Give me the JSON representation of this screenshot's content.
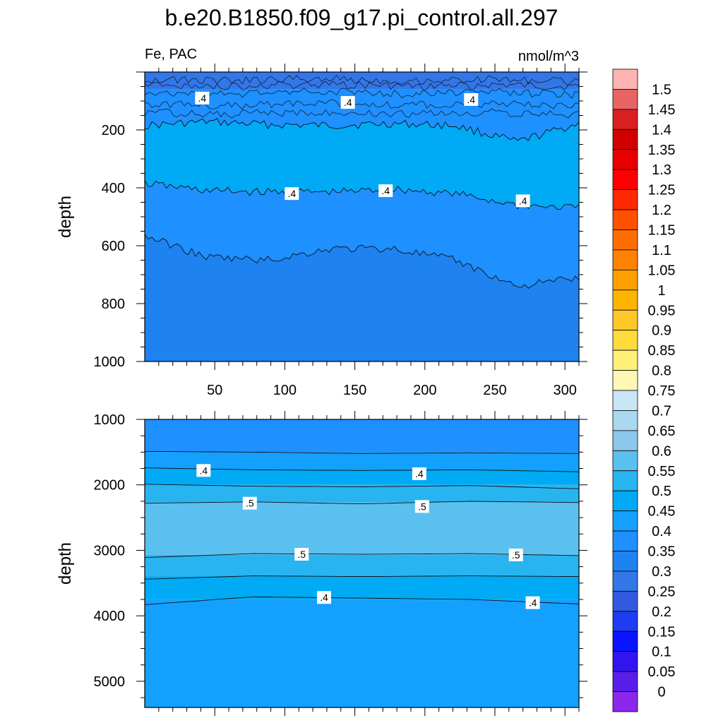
{
  "title": "b.e20.B1850.f09_g17.pi_control.all.297",
  "left_string": "Fe, PAC",
  "right_string": "nmol/m^3",
  "chart_data": [
    {
      "type": "heatmap",
      "panel": "upper",
      "ylabel": "depth",
      "xlim": [
        0,
        310
      ],
      "ylim": [
        1000,
        0
      ],
      "x_ticks": [
        50,
        100,
        150,
        200,
        250,
        300
      ],
      "y_ticks": [
        200,
        400,
        600,
        800,
        1000
      ],
      "contour_lines": [
        {
          "label": ".4",
          "depth": [
            185,
            172,
            182,
            185,
            178,
            185,
            242,
            178
          ]
        },
        {
          "label": ".4",
          "depth": [
            385,
            410,
            415,
            415,
            405,
            420,
            460,
            470
          ]
        },
        {
          "label": ".4",
          "depth": [
            565,
            640,
            650,
            610,
            610,
            650,
            740,
            710
          ]
        }
      ],
      "contour_labels": [
        {
          "text": ".4",
          "x": 41,
          "y": 90
        },
        {
          "text": ".4",
          "x": 145,
          "y": 105
        },
        {
          "text": ".4",
          "x": 233,
          "y": 95
        },
        {
          "text": ".4",
          "x": 105,
          "y": 420
        },
        {
          "text": ".4",
          "x": 172,
          "y": 410
        },
        {
          "text": ".4",
          "x": 270,
          "y": 445
        }
      ],
      "bands": [
        {
          "from": 0,
          "to": 60,
          "value": 0.25
        },
        {
          "from": 60,
          "to": "line1",
          "value": 0.35
        },
        {
          "from": "line1",
          "to": "line2",
          "value": 0.45
        },
        {
          "from": "line2",
          "to": "line3",
          "value": 0.35
        },
        {
          "from": "line3",
          "to": 1000,
          "value": 0.3
        }
      ]
    },
    {
      "type": "heatmap",
      "panel": "lower",
      "ylabel": "depth",
      "xlim": [
        0,
        310
      ],
      "ylim": [
        5400,
        1000
      ],
      "x_ticks": [
        50,
        100,
        150,
        200,
        250,
        300
      ],
      "y_ticks": [
        1000,
        2000,
        3000,
        4000,
        5000
      ],
      "contour_lines": [
        {
          "label": ".4",
          "depth": [
            1490,
            1500,
            1520,
            1510,
            1520
          ]
        },
        {
          "label": ".4",
          "depth": [
            1740,
            1770,
            1780,
            1770,
            1800
          ]
        },
        {
          "label": ".5",
          "depth": [
            1990,
            2020,
            2030,
            2010,
            2060
          ]
        },
        {
          "label": ".5",
          "depth": [
            2280,
            2260,
            2290,
            2250,
            2270
          ]
        },
        {
          "label": ".5",
          "depth": [
            3110,
            3050,
            3060,
            3050,
            3080
          ]
        },
        {
          "label": ".5",
          "depth": [
            3440,
            3390,
            3400,
            3390,
            3400
          ]
        },
        {
          "label": ".4",
          "depth": [
            3830,
            3710,
            3730,
            3750,
            3820
          ]
        }
      ],
      "contour_labels": [
        {
          "text": ".4",
          "x": 42,
          "y": 1780
        },
        {
          "text": ".4",
          "x": 196,
          "y": 1830
        },
        {
          "text": ".5",
          "x": 75,
          "y": 2280
        },
        {
          "text": ".5",
          "x": 198,
          "y": 2330
        },
        {
          "text": ".5",
          "x": 112,
          "y": 3060
        },
        {
          "text": ".5",
          "x": 265,
          "y": 3070
        },
        {
          "text": ".4",
          "x": 128,
          "y": 3720
        },
        {
          "text": ".4",
          "x": 277,
          "y": 3800
        }
      ],
      "bands": [
        {
          "from": 1000,
          "to": 1500,
          "value": 0.35
        },
        {
          "from": 1500,
          "to": 1760,
          "value": 0.4
        },
        {
          "from": 1760,
          "to": 2000,
          "value": 0.45
        },
        {
          "from": 2000,
          "to": 2270,
          "value": 0.5
        },
        {
          "from": 2270,
          "to": 3070,
          "value": 0.55
        },
        {
          "from": 3070,
          "to": 3400,
          "value": 0.5
        },
        {
          "from": 3400,
          "to": 3760,
          "value": 0.45
        },
        {
          "from": 3760,
          "to": 5400,
          "value": 0.4
        }
      ]
    }
  ],
  "colorbar": {
    "labels": [
      "1.5",
      "1.45",
      "1.4",
      "1.35",
      "1.3",
      "1.25",
      "1.2",
      "1.15",
      "1.1",
      "1.05",
      "1",
      "0.95",
      "0.9",
      "0.85",
      "0.8",
      "0.75",
      "0.7",
      "0.65",
      "0.6",
      "0.55",
      "0.5",
      "0.45",
      "0.4",
      "0.35",
      "0.3",
      "0.25",
      "0.2",
      "0.15",
      "0.1",
      "0.05",
      "0"
    ],
    "colors": [
      "#ffb4b4",
      "#e86464",
      "#d82020",
      "#d00000",
      "#e80000",
      "#ff0000",
      "#ff2800",
      "#ff5000",
      "#ff6e00",
      "#ff8200",
      "#ffa000",
      "#ffb400",
      "#ffc828",
      "#ffdc3c",
      "#fff078",
      "#fff8b4",
      "#c8e6f5",
      "#aad8f0",
      "#8cc8eb",
      "#5ac0f0",
      "#28b4f0",
      "#00aaf5",
      "#14a0ff",
      "#1e90ff",
      "#1e82f0",
      "#3276e8",
      "#325ae0",
      "#1e3cf0",
      "#0a14ff",
      "#3214f0",
      "#5a1eeb",
      "#8c28eb"
    ]
  }
}
